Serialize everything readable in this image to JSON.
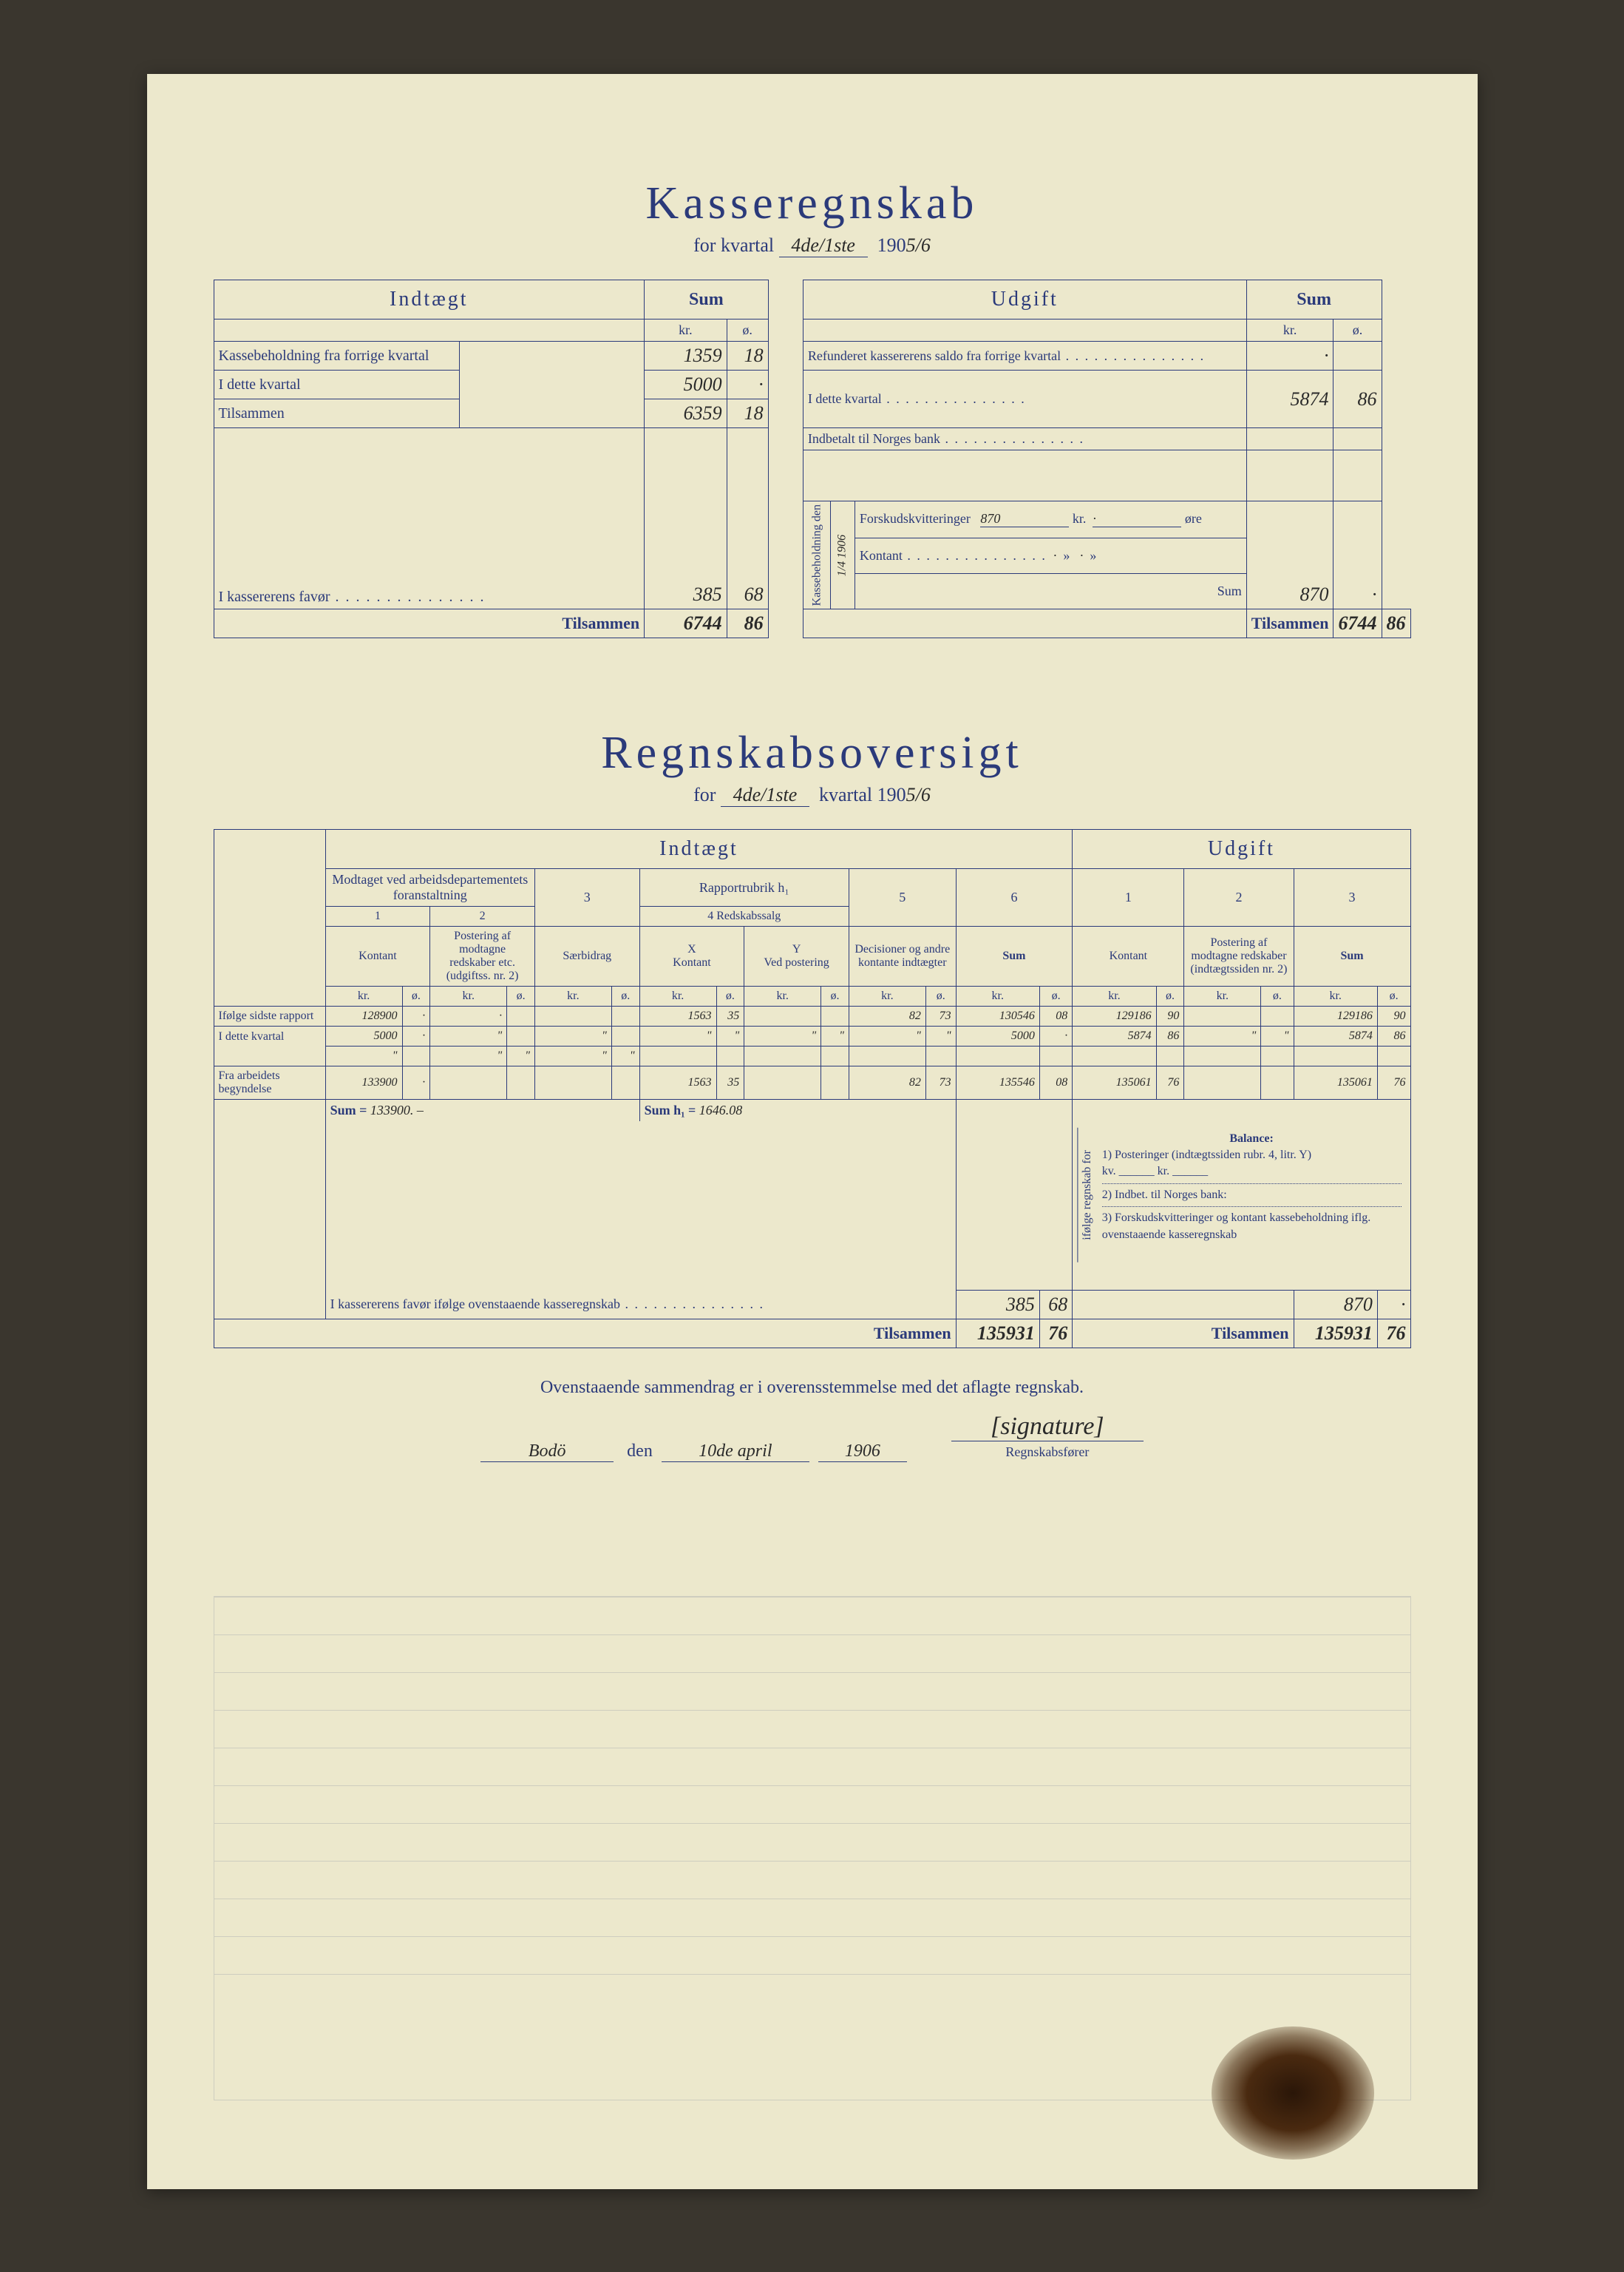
{
  "section1": {
    "title": "Kasseregnskab",
    "subtitle_prefix": "for kvartal",
    "quarter_hw": "4de/1ste",
    "year_prefix": "190",
    "year_hw": "5/6",
    "headers": {
      "indtaegt": "Indtægt",
      "sum": "Sum",
      "udgift": "Udgift",
      "kr": "kr.",
      "o": "ø."
    },
    "left_rows": {
      "r1_label": "Kassebeholdning fra forrige kvartal",
      "r1_kr": "1359",
      "r1_o": "18",
      "r2_label": "I dette kvartal",
      "r2_kr": "5000",
      "r2_o": "·",
      "r3_label": "Tilsammen",
      "r3_kr": "6359",
      "r3_o": "18",
      "r4_label": "I kassererens favør",
      "r4_kr": "385",
      "r4_o": "68",
      "tils_label": "Tilsammen",
      "tils_kr": "6744",
      "tils_o": "86"
    },
    "right_rows": {
      "r1_label": "Refunderet kassererens saldo fra forrige kvartal",
      "r1_kr": "·",
      "r1_o": "",
      "r2_label": "I dette kvartal",
      "r2_kr": "5874",
      "r2_o": "86",
      "r3_label": "Indbetalt til Norges bank",
      "r3_kr": "",
      "r3_o": "",
      "kasse_label": "Kassebeholdning den",
      "kasse_date": "1/4 1906",
      "forskud_label": "Forskudskvitteringer",
      "forskud_kr": "870",
      "forskud_kr_unit": "kr.",
      "forskud_o": "·",
      "forskud_o_unit": "øre",
      "kontant_label": "Kontant",
      "kontant_kr": "·",
      "kontant_o": "·",
      "sum_label": "Sum",
      "sum_kr": "870",
      "sum_o": "·",
      "tils_label": "Tilsammen",
      "tils_kr": "6744",
      "tils_o": "86"
    }
  },
  "section2": {
    "title": "Regnskabsoversigt",
    "subtitle_prefix": "for",
    "quarter_hw": "4de/1ste",
    "subtitle_mid": "kvartal 190",
    "year_hw": "5/6",
    "headers": {
      "indtaegt": "Indtægt",
      "udgift": "Udgift",
      "modtaget": "Modtaget ved arbeidsdepartementets foranstaltning",
      "col3": "3",
      "rapport": "Rapportrubrik h₁",
      "redskab": "4   Redskabssalg",
      "col5": "5",
      "col6": "6",
      "colU1": "1",
      "colU2": "2",
      "colU3": "3",
      "c1": "1",
      "c2": "2",
      "kontant": "Kontant",
      "postering": "Postering af modtagne redskaber etc. (udgiftss. nr. 2)",
      "saerbidrag": "Særbidrag",
      "cX": "X",
      "cY": "Y",
      "ved_postering": "Ved postering",
      "decisioner": "Decisioner og andre kontante indtægter",
      "sum": "Sum",
      "postering_u": "Postering af modtagne redskaber (indtægtssiden nr. 2)",
      "kr": "kr.",
      "o": "ø."
    },
    "row_labels": {
      "ifolge": "Ifølge sidste rapport",
      "idette": "I dette kvartal",
      "fra": "Fra arbeidets begyndelse"
    },
    "rows": {
      "r1": {
        "c1kr": "128900",
        "c1o": "·",
        "c2kr": "·",
        "c2o": "",
        "c3kr": "",
        "c3o": "",
        "c4kr": "1563",
        "c4o": "35",
        "c5kr": "",
        "c5o": "",
        "c6kr": "82",
        "c6o": "73",
        "sumkr": "130546",
        "sumo": "08",
        "u1kr": "129186",
        "u1o": "90",
        "u2kr": "",
        "u2o": "",
        "u3kr": "129186",
        "u3o": "90"
      },
      "r2": {
        "c1kr": "5000",
        "c1o": "·",
        "c2kr": "\"",
        "c2o": "",
        "c3kr": "\"",
        "c3o": "",
        "c4kr": "\"",
        "c4o": "\"",
        "c5kr": "\"",
        "c5o": "\"",
        "c6kr": "\"",
        "c6o": "\"",
        "sumkr": "5000",
        "sumo": "·",
        "u1kr": "5874",
        "u1o": "86",
        "u2kr": "\"",
        "u2o": "\"",
        "u3kr": "5874",
        "u3o": "86"
      },
      "r2b": {
        "c1kr": "\"",
        "c1o": "",
        "c2kr": "\"",
        "c2o": "\"",
        "c3kr": "\"",
        "c3o": "\"",
        "c4kr": "",
        "c4o": "",
        "c5kr": "",
        "c5o": "",
        "c6kr": "",
        "c6o": "",
        "sumkr": "",
        "sumo": "",
        "u1kr": "",
        "u1o": "",
        "u2kr": "",
        "u2o": "",
        "u3kr": "",
        "u3o": ""
      },
      "r3": {
        "c1kr": "133900",
        "c1o": "·",
        "c2kr": "",
        "c2o": "",
        "c3kr": "",
        "c3o": "",
        "c4kr": "1563",
        "c4o": "35",
        "c5kr": "",
        "c5o": "",
        "c6kr": "82",
        "c6o": "73",
        "sumkr": "135546",
        "sumo": "08",
        "u1kr": "135061",
        "u1o": "76",
        "u2kr": "",
        "u2o": "",
        "u3kr": "135061",
        "u3o": "76"
      }
    },
    "sum_line": {
      "label1": "Sum =",
      "val1": "133900. –",
      "label2": "Sum h₁ =",
      "val2": "1646.08"
    },
    "balance": {
      "header": "Balance:",
      "ifolge": "ifølge regnskab for",
      "l1": "1) Posteringer (indtægtssiden rubr. 4, litr. Y)",
      "l1v": "kv. ______ kr. ______",
      "l2": "2) Indbet. til Norges bank:",
      "l3": "3) Forskudskvitteringer og kontant kassebeholdning iflg. ovenstaaende kasseregnskab",
      "l3kr": "870",
      "l3o": "·"
    },
    "fav_label": "I kassererens favør ifølge ovenstaaende kasseregnskab",
    "fav_kr": "385",
    "fav_o": "68",
    "tils_label": "Tilsammen",
    "tils_sum_kr": "135931",
    "tils_sum_o": "76",
    "tils_u_kr": "135931",
    "tils_u_o": "76"
  },
  "attestation": {
    "line": "Ovenstaaende sammendrag er i overensstemmelse med det aflagte regnskab.",
    "place": "Bodö",
    "den": "den",
    "date": "10de april",
    "year": "1906",
    "sig": "[signature]",
    "role": "Regnskabsfører"
  }
}
